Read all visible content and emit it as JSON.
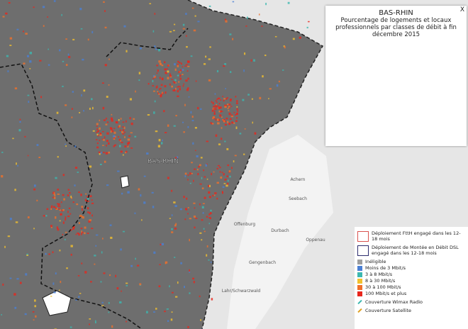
{
  "map": {
    "region_label": "BAS-RHIN",
    "places": [
      "Offenburg",
      "Lahr/Schwarzwald",
      "Gengenbach",
      "Achern",
      "Oppenau",
      "Durbach",
      "Seebach"
    ]
  },
  "popup": {
    "close": "X",
    "title": "BAS-RHIN",
    "subtitle": "Pourcentage de logements et locaux professionnels par classes de débit à fin décembre 2015"
  },
  "legend": {
    "outline_items": [
      {
        "label": "Déploiement FttH engagé dans les 12-18 mois",
        "color": "#d9534f"
      },
      {
        "label": "Déploiement de Montée en Débit DSL engagé dans les 12-18 mois",
        "color": "#2c2c6e"
      }
    ],
    "classes": [
      {
        "label": "Inéligible",
        "color": "#9e9e9e"
      },
      {
        "label": "Moins de 3 Mbit/s",
        "color": "#4a7fd4"
      },
      {
        "label": "3 à 8 Mbit/s",
        "color": "#3cb8b0"
      },
      {
        "label": "8 à 30 Mbit/s",
        "color": "#f2c12e"
      },
      {
        "label": "30 à 100 Mbit/s",
        "color": "#f0702a"
      },
      {
        "label": "100 Mbit/s et plus",
        "color": "#e8261c"
      }
    ],
    "coverage": [
      {
        "label": "Couverture Wimax Radio",
        "color": "#3cb8b0"
      },
      {
        "label": "Couverture Satellite",
        "color": "#e0a020"
      }
    ]
  }
}
